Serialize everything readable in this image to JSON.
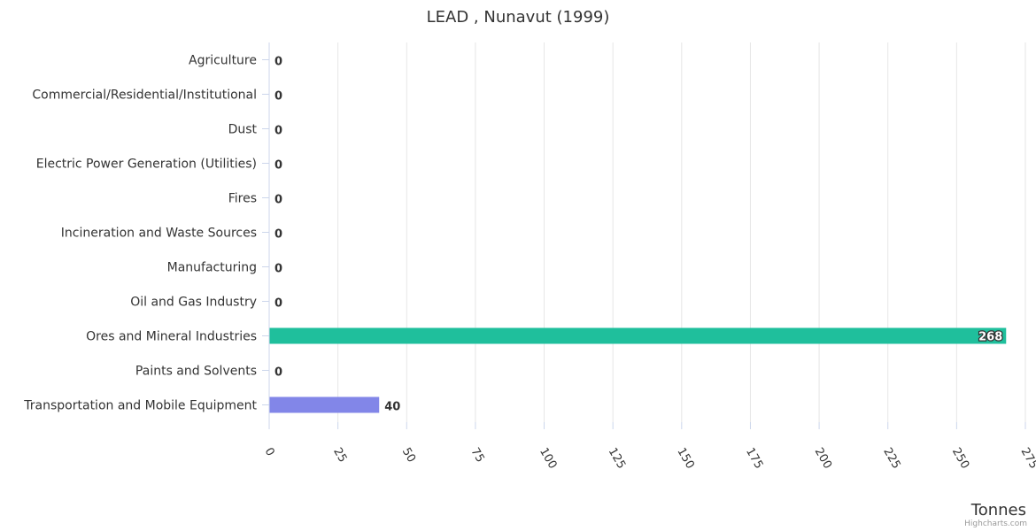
{
  "chart_data": {
    "type": "bar",
    "orientation": "horizontal",
    "title": "LEAD , Nunavut (1999)",
    "categories": [
      "Agriculture",
      "Commercial/Residential/Institutional",
      "Dust",
      "Electric Power Generation (Utilities)",
      "Fires",
      "Incineration and Waste Sources",
      "Manufacturing",
      "Oil and Gas Industry",
      "Ores and Mineral Industries",
      "Paints and Solvents",
      "Transportation and Mobile Equipment"
    ],
    "values": [
      0,
      0,
      0,
      0,
      0,
      0,
      0,
      0,
      268,
      0,
      40
    ],
    "bar_colors": {
      "Ores and Mineral Industries": "#1fbf9c",
      "Transportation and Mobile Equipment": "#8286e8"
    },
    "xlabel": "Tonnes",
    "ylabel": "",
    "xlim": [
      0,
      275
    ],
    "ticks": [
      0,
      25,
      50,
      75,
      100,
      125,
      150,
      175,
      200,
      225,
      250,
      275
    ],
    "grid": true,
    "legend": "none"
  },
  "credits": "Highcharts.com"
}
